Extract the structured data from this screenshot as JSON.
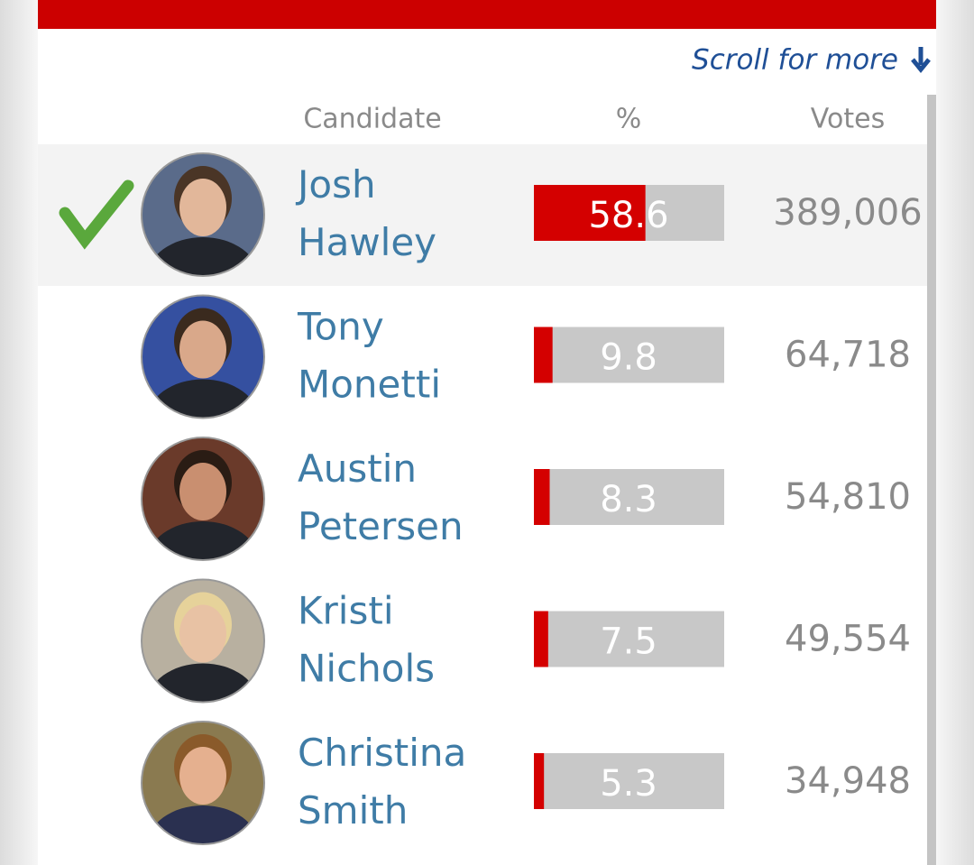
{
  "header": {
    "scroll_hint": "Scroll for more"
  },
  "table": {
    "columns": [
      "Candidate",
      "%",
      "Votes"
    ],
    "rows": [
      {
        "name": "Josh Hawley",
        "percent": 58.6,
        "votes": "389,006",
        "winner": true
      },
      {
        "name": "Tony Monetti",
        "percent": 9.8,
        "votes": "64,718",
        "winner": false
      },
      {
        "name": "Austin Petersen",
        "percent": 8.3,
        "votes": "54,810",
        "winner": false
      },
      {
        "name": "Kristi Nichols",
        "percent": 7.5,
        "votes": "49,554",
        "winner": false
      },
      {
        "name": "Christina Smith",
        "percent": 5.3,
        "votes": "34,948",
        "winner": false
      }
    ]
  }
}
